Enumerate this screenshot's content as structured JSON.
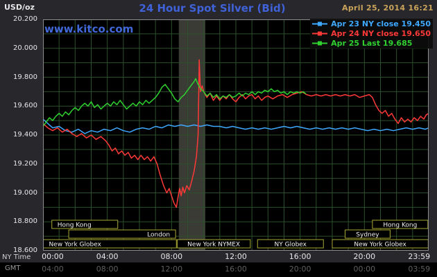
{
  "header": {
    "unit": "USD/oz",
    "title": "24 Hour Spot Silver (Bid)",
    "datetime": "April 25, 2014 16:21",
    "watermark": "www.kitco.com"
  },
  "axes": {
    "y_ticks": [
      "20.200",
      "20.000",
      "19.800",
      "19.600",
      "19.400",
      "19.200",
      "19.000",
      "18.800",
      "18.600"
    ],
    "tick_hours": [
      0,
      4,
      8,
      12,
      16,
      20,
      23.983
    ],
    "ny": {
      "label": "NY Time",
      "ticks": [
        "00:00",
        "04:00",
        "08:00",
        "12:00",
        "16:00",
        "20:00",
        "23:59"
      ]
    },
    "gmt": {
      "label": "GMT",
      "ticks": [
        "04:00",
        "08:00",
        "12:00",
        "16:00",
        "20:00",
        "00:00",
        "03:59"
      ]
    }
  },
  "sessions": [
    {
      "row": 0,
      "start": 0.55,
      "end": 4.65,
      "label": "Hong Kong",
      "align": "left"
    },
    {
      "row": 0,
      "start": 20.5,
      "end": 23.95,
      "label": "Hong Kong",
      "align": "center"
    },
    {
      "row": 1,
      "start": 1.6,
      "end": 8.25,
      "label": "London",
      "align": "right"
    },
    {
      "row": 1,
      "start": 18.8,
      "end": 21.6,
      "label": "Sydney",
      "align": "center"
    },
    {
      "row": 2,
      "start": 0.02,
      "end": 8.3,
      "label": "New York Globex",
      "align": "left"
    },
    {
      "row": 2,
      "start": 8.35,
      "end": 12.9,
      "label": "New York NYMEX",
      "align": "center"
    },
    {
      "row": 2,
      "start": 13.35,
      "end": 17.45,
      "label": "NY Globex",
      "align": "center"
    },
    {
      "row": 2,
      "start": 18.0,
      "end": 23.97,
      "label": "New York Globex",
      "align": "center"
    }
  ],
  "colors": {
    "background": "#27272c",
    "plot_background": "#000000",
    "grid": "#2c512c",
    "highlight_band": "#3b3b35",
    "frame": "#8c8c8c",
    "session_border": "#a8a832",
    "session_text": "#f0f0f0",
    "title": "#4062d8",
    "datetime": "#c9a35a",
    "watermark": "#4169d9",
    "axis_text": "#e8e8e8",
    "gmt_text": "#5f5f5f"
  },
  "chart_data": {
    "type": "line",
    "title": "24 Hour Spot Silver (Bid)",
    "ylabel": "USD/oz",
    "xlabel": "NY Time (hours 00:00-23:59)",
    "ylim": [
      18.6,
      20.2
    ],
    "xlim": [
      0,
      24
    ],
    "grid": {
      "x_step_hours": 1,
      "y_step": 0.1
    },
    "highlight_band_hours": [
      8.45,
      10.1
    ],
    "legend_position": "top-right",
    "series": [
      {
        "name": "Apr 23",
        "label": "Apr 23 NY close 19.450",
        "close": 19.45,
        "color": "#3fa8ff",
        "points": [
          [
            0,
            19.51
          ],
          [
            0.3,
            19.48
          ],
          [
            0.6,
            19.45
          ],
          [
            1,
            19.46
          ],
          [
            1.4,
            19.43
          ],
          [
            1.8,
            19.42
          ],
          [
            2.2,
            19.44
          ],
          [
            2.6,
            19.41
          ],
          [
            3,
            19.43
          ],
          [
            3.4,
            19.42
          ],
          [
            3.8,
            19.44
          ],
          [
            4.2,
            19.43
          ],
          [
            4.6,
            19.45
          ],
          [
            5,
            19.43
          ],
          [
            5.4,
            19.42
          ],
          [
            5.8,
            19.44
          ],
          [
            6.2,
            19.45
          ],
          [
            6.6,
            19.44
          ],
          [
            7,
            19.46
          ],
          [
            7.4,
            19.45
          ],
          [
            7.8,
            19.47
          ],
          [
            8.2,
            19.46
          ],
          [
            8.6,
            19.47
          ],
          [
            9,
            19.46
          ],
          [
            9.4,
            19.47
          ],
          [
            9.8,
            19.46
          ],
          [
            10.2,
            19.47
          ],
          [
            10.6,
            19.46
          ],
          [
            11,
            19.46
          ],
          [
            11.4,
            19.45
          ],
          [
            11.8,
            19.46
          ],
          [
            12.2,
            19.45
          ],
          [
            12.6,
            19.44
          ],
          [
            13,
            19.45
          ],
          [
            13.4,
            19.44
          ],
          [
            13.8,
            19.45
          ],
          [
            14.2,
            19.44
          ],
          [
            14.6,
            19.45
          ],
          [
            15,
            19.46
          ],
          [
            15.4,
            19.45
          ],
          [
            15.8,
            19.46
          ],
          [
            16.2,
            19.45
          ],
          [
            16.6,
            19.44
          ],
          [
            17,
            19.45
          ],
          [
            17.4,
            19.44
          ],
          [
            17.8,
            19.45
          ],
          [
            18.2,
            19.44
          ],
          [
            18.6,
            19.45
          ],
          [
            19,
            19.44
          ],
          [
            19.4,
            19.45
          ],
          [
            19.8,
            19.44
          ],
          [
            20.2,
            19.43
          ],
          [
            20.6,
            19.44
          ],
          [
            21,
            19.43
          ],
          [
            21.4,
            19.44
          ],
          [
            21.8,
            19.43
          ],
          [
            22.2,
            19.44
          ],
          [
            22.6,
            19.45
          ],
          [
            23,
            19.44
          ],
          [
            23.4,
            19.45
          ],
          [
            23.8,
            19.44
          ],
          [
            24,
            19.45
          ]
        ]
      },
      {
        "name": "Apr 24",
        "label": "Apr 24 NY close 19.650",
        "close": 19.65,
        "color": "#ff3838",
        "points": [
          [
            0,
            19.48
          ],
          [
            0.3,
            19.45
          ],
          [
            0.6,
            19.43
          ],
          [
            0.9,
            19.45
          ],
          [
            1.2,
            19.42
          ],
          [
            1.5,
            19.44
          ],
          [
            1.8,
            19.41
          ],
          [
            2.1,
            19.39
          ],
          [
            2.4,
            19.41
          ],
          [
            2.7,
            19.38
          ],
          [
            3,
            19.4
          ],
          [
            3.3,
            19.37
          ],
          [
            3.6,
            19.39
          ],
          [
            3.9,
            19.36
          ],
          [
            4.1,
            19.33
          ],
          [
            4.3,
            19.29
          ],
          [
            4.5,
            19.31
          ],
          [
            4.7,
            19.27
          ],
          [
            4.9,
            19.29
          ],
          [
            5.1,
            19.26
          ],
          [
            5.3,
            19.28
          ],
          [
            5.5,
            19.24
          ],
          [
            5.7,
            19.26
          ],
          [
            5.9,
            19.23
          ],
          [
            6.1,
            19.26
          ],
          [
            6.3,
            19.23
          ],
          [
            6.5,
            19.25
          ],
          [
            6.7,
            19.22
          ],
          [
            6.9,
            19.25
          ],
          [
            7.1,
            19.2
          ],
          [
            7.3,
            19.12
          ],
          [
            7.5,
            19.05
          ],
          [
            7.7,
            19.0
          ],
          [
            7.85,
            19.03
          ],
          [
            8,
            18.98
          ],
          [
            8.15,
            18.93
          ],
          [
            8.3,
            18.9
          ],
          [
            8.4,
            18.97
          ],
          [
            8.5,
            19.03
          ],
          [
            8.6,
            18.98
          ],
          [
            8.7,
            19.04
          ],
          [
            8.8,
            19.0
          ],
          [
            8.95,
            19.05
          ],
          [
            9.1,
            19.02
          ],
          [
            9.25,
            19.08
          ],
          [
            9.4,
            19.15
          ],
          [
            9.55,
            19.25
          ],
          [
            9.65,
            19.4
          ],
          [
            9.72,
            19.92
          ],
          [
            9.8,
            19.7
          ],
          [
            9.9,
            19.74
          ],
          [
            10,
            19.7
          ],
          [
            10.2,
            19.66
          ],
          [
            10.4,
            19.69
          ],
          [
            10.6,
            19.64
          ],
          [
            10.8,
            19.67
          ],
          [
            11,
            19.64
          ],
          [
            11.2,
            19.67
          ],
          [
            11.4,
            19.65
          ],
          [
            11.6,
            19.68
          ],
          [
            11.8,
            19.65
          ],
          [
            12,
            19.63
          ],
          [
            12.2,
            19.66
          ],
          [
            12.4,
            19.68
          ],
          [
            12.6,
            19.65
          ],
          [
            12.8,
            19.67
          ],
          [
            13,
            19.68
          ],
          [
            13.2,
            19.65
          ],
          [
            13.4,
            19.67
          ],
          [
            13.6,
            19.64
          ],
          [
            13.8,
            19.66
          ],
          [
            14,
            19.67
          ],
          [
            14.3,
            19.65
          ],
          [
            14.6,
            19.67
          ],
          [
            14.9,
            19.68
          ],
          [
            15.2,
            19.66
          ],
          [
            15.5,
            19.68
          ],
          [
            15.8,
            19.69
          ],
          [
            16.1,
            19.7
          ],
          [
            16.4,
            19.68
          ],
          [
            16.7,
            19.67
          ],
          [
            17,
            19.68
          ],
          [
            17.3,
            19.67
          ],
          [
            17.6,
            19.68
          ],
          [
            17.9,
            19.67
          ],
          [
            18.2,
            19.68
          ],
          [
            18.5,
            19.67
          ],
          [
            18.8,
            19.68
          ],
          [
            19.1,
            19.67
          ],
          [
            19.4,
            19.68
          ],
          [
            19.7,
            19.66
          ],
          [
            20,
            19.67
          ],
          [
            20.3,
            19.68
          ],
          [
            20.5,
            19.66
          ],
          [
            20.7,
            19.61
          ],
          [
            20.9,
            19.57
          ],
          [
            21.1,
            19.55
          ],
          [
            21.3,
            19.57
          ],
          [
            21.5,
            19.53
          ],
          [
            21.7,
            19.55
          ],
          [
            21.9,
            19.51
          ],
          [
            22.1,
            19.48
          ],
          [
            22.3,
            19.52
          ],
          [
            22.5,
            19.49
          ],
          [
            22.7,
            19.51
          ],
          [
            22.9,
            19.49
          ],
          [
            23.1,
            19.52
          ],
          [
            23.3,
            19.5
          ],
          [
            23.5,
            19.53
          ],
          [
            23.7,
            19.51
          ],
          [
            23.85,
            19.54
          ],
          [
            24,
            19.55
          ]
        ]
      },
      {
        "name": "Apr 25",
        "label": "Apr 25 Last 19.685",
        "last": 19.685,
        "color": "#2fd12f",
        "points": [
          [
            0,
            19.46
          ],
          [
            0.2,
            19.49
          ],
          [
            0.4,
            19.52
          ],
          [
            0.6,
            19.5
          ],
          [
            0.8,
            19.53
          ],
          [
            1,
            19.55
          ],
          [
            1.2,
            19.53
          ],
          [
            1.4,
            19.56
          ],
          [
            1.6,
            19.54
          ],
          [
            1.8,
            19.57
          ],
          [
            2,
            19.59
          ],
          [
            2.2,
            19.57
          ],
          [
            2.4,
            19.6
          ],
          [
            2.6,
            19.62
          ],
          [
            2.8,
            19.6
          ],
          [
            3,
            19.63
          ],
          [
            3.2,
            19.59
          ],
          [
            3.4,
            19.61
          ],
          [
            3.6,
            19.58
          ],
          [
            3.8,
            19.6
          ],
          [
            4,
            19.62
          ],
          [
            4.2,
            19.6
          ],
          [
            4.4,
            19.63
          ],
          [
            4.6,
            19.61
          ],
          [
            4.8,
            19.64
          ],
          [
            5,
            19.61
          ],
          [
            5.2,
            19.58
          ],
          [
            5.4,
            19.6
          ],
          [
            5.6,
            19.62
          ],
          [
            5.8,
            19.6
          ],
          [
            6,
            19.63
          ],
          [
            6.2,
            19.61
          ],
          [
            6.4,
            19.64
          ],
          [
            6.6,
            19.62
          ],
          [
            6.8,
            19.64
          ],
          [
            7,
            19.66
          ],
          [
            7.2,
            19.69
          ],
          [
            7.4,
            19.73
          ],
          [
            7.6,
            19.75
          ],
          [
            7.8,
            19.72
          ],
          [
            8,
            19.69
          ],
          [
            8.2,
            19.65
          ],
          [
            8.4,
            19.63
          ],
          [
            8.6,
            19.66
          ],
          [
            8.8,
            19.68
          ],
          [
            9,
            19.71
          ],
          [
            9.2,
            19.74
          ],
          [
            9.4,
            19.77
          ],
          [
            9.5,
            19.79
          ],
          [
            9.65,
            19.75
          ],
          [
            9.8,
            19.72
          ],
          [
            10,
            19.7
          ],
          [
            10.2,
            19.67
          ],
          [
            10.4,
            19.69
          ],
          [
            10.6,
            19.66
          ],
          [
            10.8,
            19.68
          ],
          [
            11,
            19.65
          ],
          [
            11.2,
            19.67
          ],
          [
            11.4,
            19.66
          ],
          [
            11.6,
            19.68
          ],
          [
            11.8,
            19.66
          ],
          [
            12,
            19.67
          ],
          [
            12.2,
            19.69
          ],
          [
            12.4,
            19.67
          ],
          [
            12.6,
            19.69
          ],
          [
            12.8,
            19.68
          ],
          [
            13,
            19.7
          ],
          [
            13.2,
            19.68
          ],
          [
            13.4,
            19.7
          ],
          [
            13.6,
            19.69
          ],
          [
            13.8,
            19.71
          ],
          [
            14,
            19.7
          ],
          [
            14.2,
            19.72
          ],
          [
            14.4,
            19.7
          ],
          [
            14.6,
            19.71
          ],
          [
            14.8,
            19.69
          ],
          [
            15,
            19.7
          ],
          [
            15.2,
            19.68
          ],
          [
            15.4,
            19.7
          ],
          [
            15.6,
            19.69
          ],
          [
            15.8,
            19.7
          ],
          [
            16,
            19.69
          ],
          [
            16.2,
            19.7
          ],
          [
            16.35,
            19.685
          ]
        ]
      }
    ]
  }
}
